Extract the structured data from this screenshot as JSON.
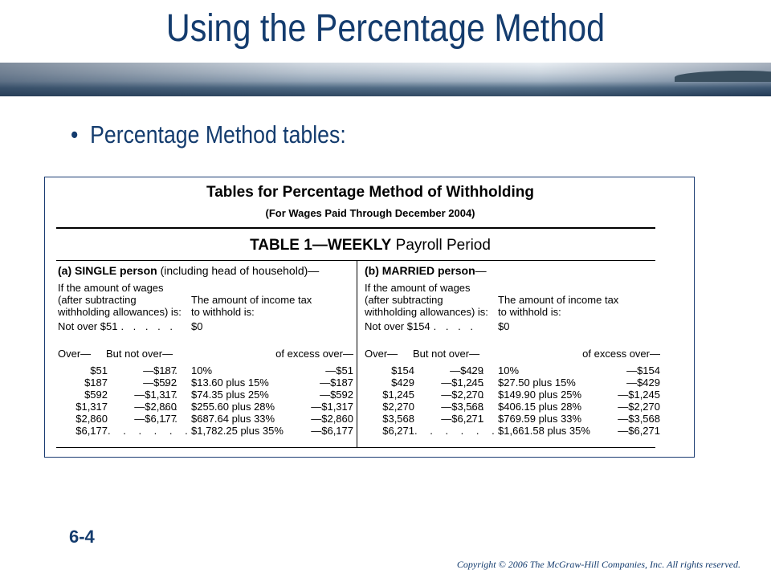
{
  "slide": {
    "title": "Using the Percentage Method",
    "bullet": "Percentage Method tables:",
    "slide_number": "6-4",
    "copyright": "Copyright © 2006 The McGraw-Hill Companies, Inc. All rights reserved.",
    "bullet_glyph": "•"
  },
  "colors": {
    "title": "#143c6e",
    "frame_border": "#1a3c72"
  },
  "table": {
    "title": "Tables for Percentage Method of Withholding",
    "subtitle": "(For Wages Paid Through December 2004)",
    "period_bold": "TABLE 1—WEEKLY",
    "period_rest": " Payroll Period",
    "condition_lines": [
      "If the amount of wages",
      "(after subtracting",
      "withholding allowances) is:"
    ],
    "tax_lines": [
      "The amount of income tax",
      "to withhold is:"
    ],
    "col_over": "Over—",
    "col_but_not_over": "But not over—",
    "col_of_excess": "of excess over—",
    "single": {
      "heading_bold": "(a) SINGLE person",
      "heading_rest": " (including head of household)—",
      "not_over_label": "Not over $51",
      "not_over_dots": ". . . . .",
      "not_over_amount": "$0",
      "rows": [
        {
          "over": "$51",
          "not_over": "—$187",
          "dots": ". .",
          "amount": "10%",
          "excess": "—$51"
        },
        {
          "over": "$187",
          "not_over": "—$592",
          "dots": ". .",
          "amount": "$13.60 plus 15%",
          "excess": "—$187"
        },
        {
          "over": "$592",
          "not_over": "—$1,317",
          "dots": ". .",
          "amount": "$74.35 plus 25%",
          "excess": "—$592"
        },
        {
          "over": "$1,317",
          "not_over": "—$2,860",
          "dots": ". .",
          "amount": "$255.60 plus 28%",
          "excess": "—$1,317"
        },
        {
          "over": "$2,860",
          "not_over": "—$6,177",
          "dots": ". .",
          "amount": "$687.64 plus 33%",
          "excess": "—$2,860"
        }
      ],
      "last_row": {
        "over": "$6,177",
        "dots": ". . . . . .",
        "amount": "$1,782.25 plus 35%",
        "excess": "—$6,177"
      }
    },
    "married": {
      "heading_bold": "(b) MARRIED person",
      "heading_rest": "—",
      "not_over_label": "Not over $154",
      "not_over_dots": ". . . .",
      "not_over_amount": "$0",
      "rows": [
        {
          "over": "$154",
          "not_over": "—$429",
          "dots": ". .",
          "amount": "10%",
          "excess": "—$154"
        },
        {
          "over": "$429",
          "not_over": "—$1,245",
          "dots": ". .",
          "amount": "$27.50 plus 15%",
          "excess": "—$429"
        },
        {
          "over": "$1,245",
          "not_over": "—$2,270",
          "dots": ". .",
          "amount": "$149.90 plus 25%",
          "excess": "—$1,245"
        },
        {
          "over": "$2,270",
          "not_over": "—$3,568",
          "dots": ". .",
          "amount": "$406.15 plus 28%",
          "excess": "—$2,270"
        },
        {
          "over": "$3,568",
          "not_over": "—$6,271",
          "dots": ". .",
          "amount": "$769.59 plus 33%",
          "excess": "—$3,568"
        }
      ],
      "last_row": {
        "over": "$6,271",
        "dots": ". . . . . .",
        "amount": "$1,661.58 plus 35%",
        "excess": "—$6,271"
      }
    }
  }
}
